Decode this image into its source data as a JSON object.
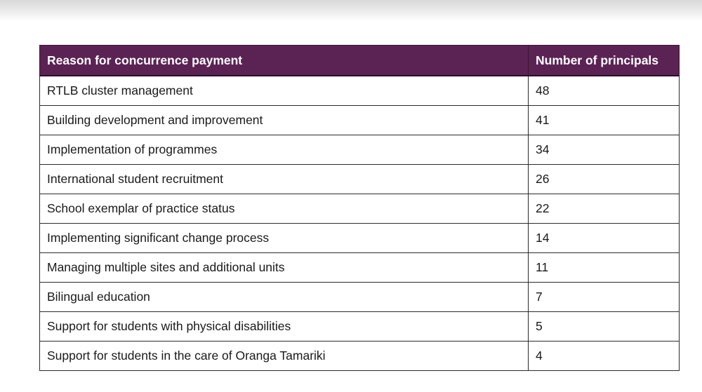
{
  "table": {
    "headers": [
      "Reason for concurrence payment",
      "Number of principals"
    ],
    "rows": [
      [
        "RTLB cluster management",
        "48"
      ],
      [
        "Building development and improvement",
        "41"
      ],
      [
        "Implementation of programmes",
        "34"
      ],
      [
        "International student recruitment",
        "26"
      ],
      [
        "School exemplar of practice status",
        "22"
      ],
      [
        "Implementing significant change process",
        "14"
      ],
      [
        "Managing multiple sites and additional units",
        "11"
      ],
      [
        "Bilingual education",
        "7"
      ],
      [
        "Support for students with physical disabilities",
        "5"
      ],
      [
        "Support for students in the care of Oranga Tamariki",
        "4"
      ]
    ]
  },
  "colors": {
    "header_background": "#5b2354",
    "header_text": "#ffffff",
    "border": "#2b2b2b"
  }
}
